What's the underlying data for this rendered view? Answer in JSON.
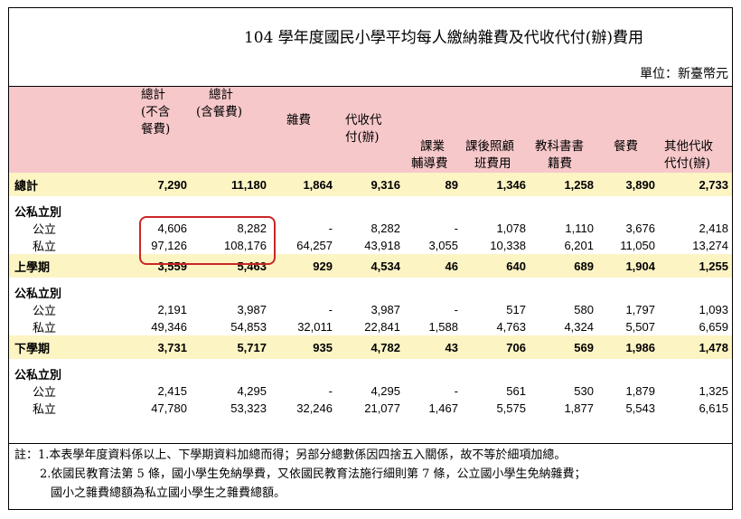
{
  "title": "104 學年度國民小學平均每人繳納雜費及代收代付(辦)費用",
  "unit": "單位：新臺幣元",
  "headers": {
    "total_excl": [
      "總計",
      "(不含",
      "餐費)"
    ],
    "total_incl": [
      "總計",
      "(含餐費)"
    ],
    "misc_fee": "雜費",
    "collect": [
      "代收代",
      "付(辦)"
    ],
    "tutoring": [
      "課業",
      "輔導費"
    ],
    "afterschool": [
      "課後照顧",
      "班費用"
    ],
    "textbook": [
      "教科書書",
      "籍費"
    ],
    "meal": "餐費",
    "other": [
      "其他代收",
      "代付(辦)"
    ]
  },
  "sections": [
    {
      "label": "總計",
      "values": [
        "7,290",
        "11,180",
        "1,864",
        "9,316",
        "89",
        "1,346",
        "1,258",
        "3,890",
        "2,733"
      ],
      "group_label": "公私立別",
      "rows": [
        {
          "label": "公立",
          "values": [
            "4,606",
            "8,282",
            "-",
            "8,282",
            "-",
            "1,078",
            "1,110",
            "3,676",
            "2,418"
          ]
        },
        {
          "label": "私立",
          "values": [
            "97,126",
            "108,176",
            "64,257",
            "43,918",
            "3,055",
            "10,338",
            "6,201",
            "11,050",
            "13,274"
          ]
        }
      ]
    },
    {
      "label": "上學期",
      "values": [
        "3,559",
        "5,463",
        "929",
        "4,534",
        "46",
        "640",
        "689",
        "1,904",
        "1,255"
      ],
      "group_label": "公私立別",
      "rows": [
        {
          "label": "公立",
          "values": [
            "2,191",
            "3,987",
            "-",
            "3,987",
            "-",
            "517",
            "580",
            "1,797",
            "1,093"
          ]
        },
        {
          "label": "私立",
          "values": [
            "49,346",
            "54,853",
            "32,011",
            "22,841",
            "1,588",
            "4,763",
            "4,324",
            "5,507",
            "6,659"
          ]
        }
      ]
    },
    {
      "label": "下學期",
      "values": [
        "3,731",
        "5,717",
        "935",
        "4,782",
        "43",
        "706",
        "569",
        "1,986",
        "1,478"
      ],
      "group_label": "公私立別",
      "rows": [
        {
          "label": "公立",
          "values": [
            "2,415",
            "4,295",
            "-",
            "4,295",
            "-",
            "561",
            "530",
            "1,879",
            "1,325"
          ]
        },
        {
          "label": "私立",
          "values": [
            "47,780",
            "53,323",
            "32,246",
            "21,077",
            "1,467",
            "5,575",
            "1,877",
            "5,543",
            "6,615"
          ]
        }
      ]
    }
  ],
  "notes": [
    "註：1.本表學年度資料係以上、下學期資料加總而得；另部分總數係因四捨五入關係，故不等於細項加總。",
    "2.依國民教育法第 5 條，國小學生免納學費，又依國民教育法施行細則第 7 條，公立國小學生免納雜費；",
    "國小之雜費總額為私立國小學生之雜費總額。"
  ],
  "highlight_color": "#cc2626"
}
